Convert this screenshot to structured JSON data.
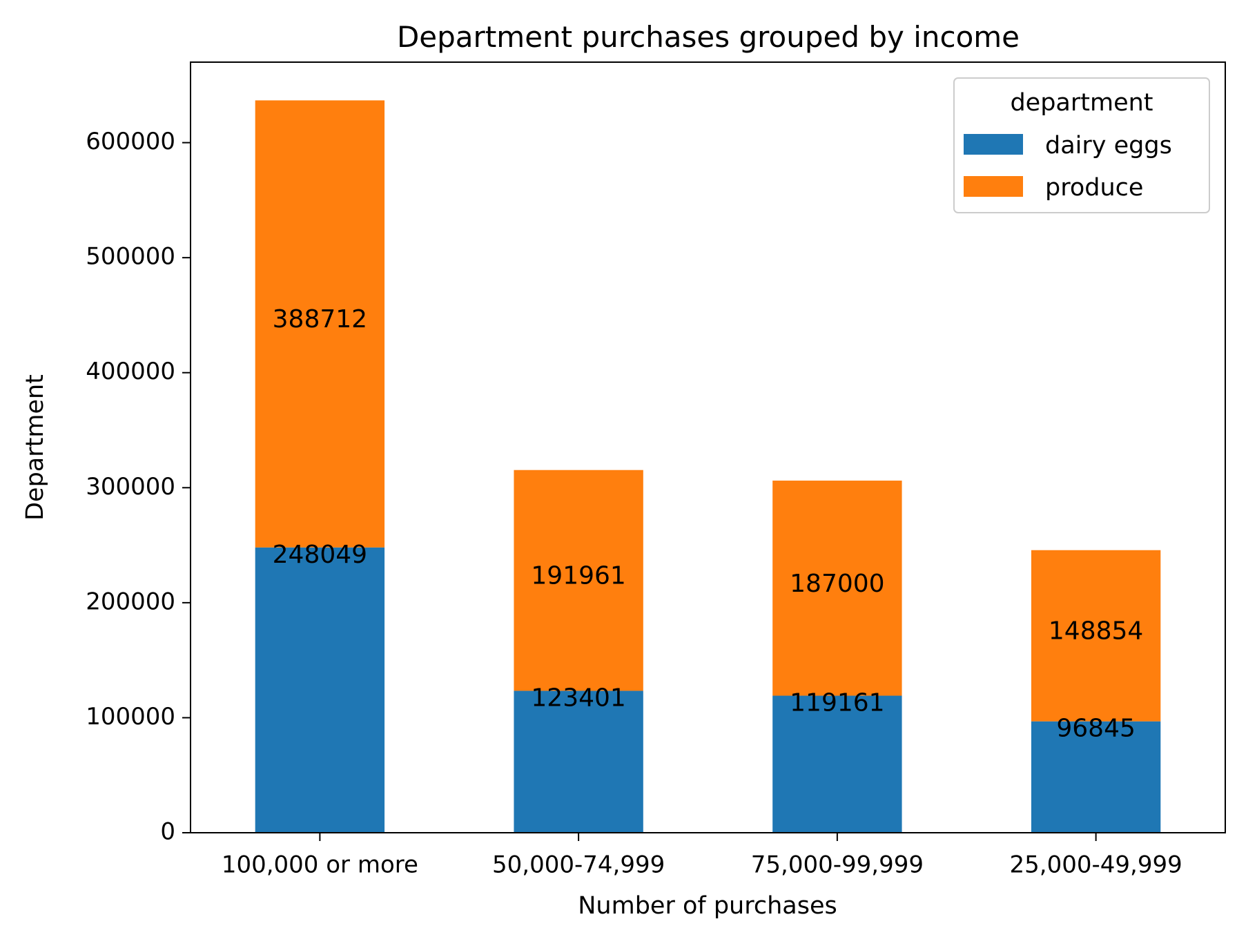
{
  "chart_data": {
    "type": "bar",
    "stacked": true,
    "title": "Department purchases grouped by income",
    "xlabel": "Number of purchases",
    "ylabel": "Department",
    "categories": [
      "100,000 or more",
      "50,000-74,999",
      "75,000-99,999",
      "25,000-49,999"
    ],
    "series": [
      {
        "name": "dairy eggs",
        "color": "#1f77b4",
        "values": [
          248049,
          123401,
          119161,
          96845
        ]
      },
      {
        "name": "produce",
        "color": "#ff7f0e",
        "values": [
          388712,
          191961,
          187000,
          148854
        ]
      }
    ],
    "ylim": [
      0,
      670000
    ],
    "yticks": [
      0,
      100000,
      200000,
      300000,
      400000,
      500000,
      600000
    ],
    "ytick_labels": [
      "0",
      "100000",
      "200000",
      "300000",
      "400000",
      "500000",
      "600000"
    ],
    "legend": {
      "title": "department",
      "placement": "top-right"
    },
    "grid": false
  }
}
